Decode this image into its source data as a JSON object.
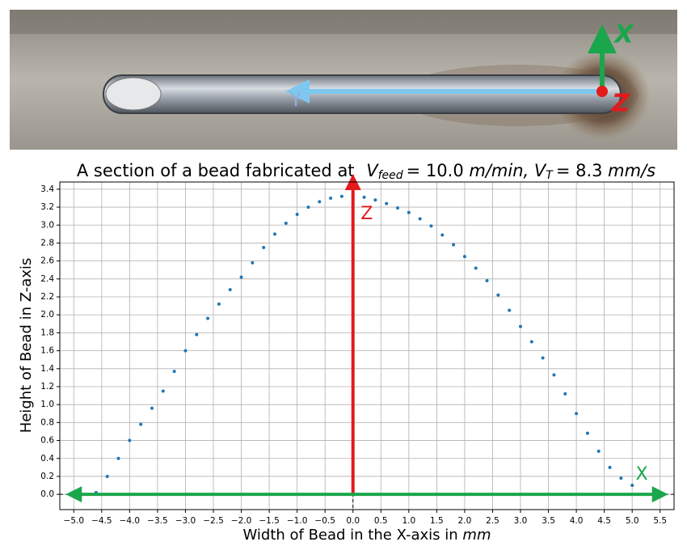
{
  "photo": {
    "x_label": "X",
    "y_label": "Y",
    "z_label": "Z"
  },
  "chart_data": {
    "type": "scatter",
    "title": "A section of a bead fabricated at",
    "title_math": [
      "V",
      "feed",
      "= 10.0",
      "m/min,",
      "V",
      "T",
      "= 8.3",
      "mm/s"
    ],
    "x_label": "Width of Bead in the X-axis in",
    "x_label_unit": "mm",
    "y_label": "Height of Bead in Z-axis",
    "color": "#1f77b4",
    "grid": true,
    "xlim": [
      -5.25,
      5.75
    ],
    "ylim": [
      -0.17,
      3.48
    ],
    "xticks": [
      {
        "value": -5.0,
        "label": "−5.0"
      },
      {
        "value": -4.5,
        "label": "−4.5"
      },
      {
        "value": -4.0,
        "label": "−4.0"
      },
      {
        "value": -3.5,
        "label": "−3.5"
      },
      {
        "value": -3.0,
        "label": "−3.0"
      },
      {
        "value": -2.5,
        "label": "−2.5"
      },
      {
        "value": -2.0,
        "label": "−2.0"
      },
      {
        "value": -1.5,
        "label": "−1.5"
      },
      {
        "value": -1.0,
        "label": "−1.0"
      },
      {
        "value": -0.5,
        "label": "−0.5"
      },
      {
        "value": 0,
        "label": "0.0"
      },
      {
        "value": 0.5,
        "label": "0.5"
      },
      {
        "value": 1.0,
        "label": "1.0"
      },
      {
        "value": 1.5,
        "label": "1.5"
      },
      {
        "value": 2.0,
        "label": "2.0"
      },
      {
        "value": 2.5,
        "label": "2.5"
      },
      {
        "value": 3.0,
        "label": "3.0"
      },
      {
        "value": 3.5,
        "label": "3.5"
      },
      {
        "value": 4.0,
        "label": "4.0"
      },
      {
        "value": 4.5,
        "label": "4.5"
      },
      {
        "value": 5.0,
        "label": "5.0"
      },
      {
        "value": 5.5,
        "label": "5.5"
      }
    ],
    "yticks": [
      {
        "value": 0,
        "label": "0.0"
      },
      {
        "value": 0.2,
        "label": "0.2"
      },
      {
        "value": 0.4,
        "label": "0.4"
      },
      {
        "value": 0.6,
        "label": "0.6"
      },
      {
        "value": 0.8,
        "label": "0.8"
      },
      {
        "value": 1.0,
        "label": "1.0"
      },
      {
        "value": 1.2,
        "label": "1.2"
      },
      {
        "value": 1.4,
        "label": "1.4"
      },
      {
        "value": 1.6,
        "label": "1.6"
      },
      {
        "value": 1.8,
        "label": "1.8"
      },
      {
        "value": 2.0,
        "label": "2.0"
      },
      {
        "value": 2.2,
        "label": "2.2"
      },
      {
        "value": 2.4,
        "label": "2.4"
      },
      {
        "value": 2.6,
        "label": "2.6"
      },
      {
        "value": 2.8,
        "label": "2.8"
      },
      {
        "value": 3.0,
        "label": "3.0"
      },
      {
        "value": 3.2,
        "label": "3.2"
      },
      {
        "value": 3.4,
        "label": "3.4"
      }
    ],
    "x": [
      -4.6,
      -4.4,
      -4.2,
      -4.0,
      -3.8,
      -3.6,
      -3.4,
      -3.2,
      -3.0,
      -2.8,
      -2.6,
      -2.4,
      -2.2,
      -2.0,
      -1.8,
      -1.6,
      -1.4,
      -1.2,
      -1.0,
      -0.8,
      -0.6,
      -0.4,
      -0.2,
      0.0,
      0.2,
      0.4,
      0.6,
      0.8,
      1.0,
      1.2,
      1.4,
      1.6,
      1.8,
      2.0,
      2.2,
      2.4,
      2.6,
      2.8,
      3.0,
      3.2,
      3.4,
      3.6,
      3.8,
      4.0,
      4.2,
      4.4,
      4.6,
      4.8,
      5.0,
      5.2
    ],
    "values": [
      0.02,
      0.2,
      0.4,
      0.6,
      0.78,
      0.96,
      1.15,
      1.37,
      1.6,
      1.78,
      1.96,
      2.12,
      2.28,
      2.42,
      2.58,
      2.75,
      2.9,
      3.02,
      3.12,
      3.2,
      3.26,
      3.3,
      3.32,
      3.32,
      3.31,
      3.28,
      3.24,
      3.19,
      3.14,
      3.07,
      2.99,
      2.89,
      2.78,
      2.65,
      2.52,
      2.38,
      2.22,
      2.05,
      1.87,
      1.7,
      1.52,
      1.33,
      1.12,
      0.9,
      0.68,
      0.48,
      0.3,
      0.18,
      0.1,
      0.0
    ],
    "axhline": 0,
    "axvline": 0,
    "arrows": [
      {
        "color": "#e41a1c",
        "x": [
          0,
          0
        ],
        "y": [
          0,
          3.48
        ],
        "double": false
      },
      {
        "color": "#1aa64a",
        "x": [
          -5.0,
          5.5
        ],
        "y": [
          0,
          0
        ],
        "double": true
      }
    ],
    "annotations": [
      {
        "text": "Z",
        "color": "#e41a1c"
      },
      {
        "text": "X",
        "color": "#1aa64a"
      }
    ]
  }
}
